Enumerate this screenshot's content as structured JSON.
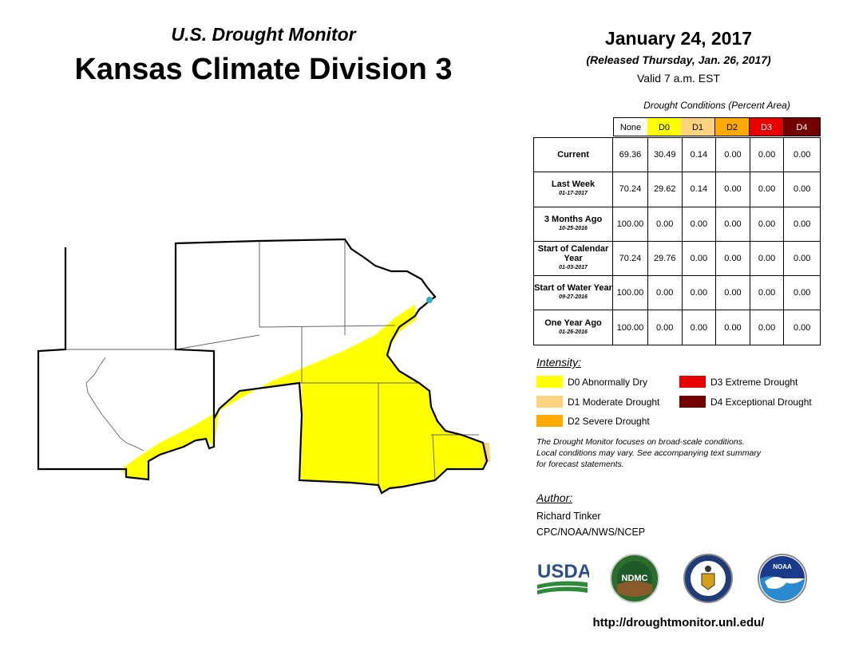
{
  "header": {
    "subtitle": "U.S. Drought Monitor",
    "title": "Kansas Climate Division 3",
    "date": "January 24, 2017",
    "released": "(Released Thursday, Jan. 26, 2017)",
    "valid": "Valid 7 a.m. EST"
  },
  "colors": {
    "none": "#ffffff",
    "d0": "#ffff00",
    "d1": "#fcd37f",
    "d2": "#ffaa00",
    "d3": "#e60000",
    "d4": "#730000"
  },
  "table": {
    "title": "Drought Conditions (Percent Area)",
    "columns": [
      "None",
      "D0",
      "D1",
      "D2",
      "D3",
      "D4"
    ],
    "rows": [
      {
        "label": "Current",
        "date": "",
        "values": [
          "69.36",
          "30.49",
          "0.14",
          "0.00",
          "0.00",
          "0.00"
        ]
      },
      {
        "label": "Last Week",
        "date": "01-17-2017",
        "values": [
          "70.24",
          "29.62",
          "0.14",
          "0.00",
          "0.00",
          "0.00"
        ]
      },
      {
        "label": "3 Months Ago",
        "date": "10-25-2016",
        "values": [
          "100.00",
          "0.00",
          "0.00",
          "0.00",
          "0.00",
          "0.00"
        ]
      },
      {
        "label": "Start of Calendar Year",
        "date": "01-03-2017",
        "values": [
          "70.24",
          "29.76",
          "0.00",
          "0.00",
          "0.00",
          "0.00"
        ]
      },
      {
        "label": "Start of Water Year",
        "date": "09-27-2016",
        "values": [
          "100.00",
          "0.00",
          "0.00",
          "0.00",
          "0.00",
          "0.00"
        ]
      },
      {
        "label": "One Year Ago",
        "date": "01-26-2016",
        "values": [
          "100.00",
          "0.00",
          "0.00",
          "0.00",
          "0.00",
          "0.00"
        ]
      }
    ]
  },
  "legend": {
    "title": "Intensity:",
    "items": [
      {
        "label": "D0 Abnormally Dry",
        "color": "#ffff00"
      },
      {
        "label": "D1 Moderate Drought",
        "color": "#fcd37f"
      },
      {
        "label": "D2 Severe Drought",
        "color": "#ffaa00"
      },
      {
        "label": "D3 Extreme Drought",
        "color": "#e60000"
      },
      {
        "label": "D4 Exceptional Drought",
        "color": "#730000"
      }
    ]
  },
  "note": {
    "line1": "The Drought Monitor focuses on broad-scale conditions.",
    "line2": "Local conditions may vary. See accompanying text summary",
    "line3": "for forecast statements."
  },
  "author": {
    "heading": "Author:",
    "name": "Richard Tinker",
    "org": "CPC/NOAA/NWS/NCEP"
  },
  "logos": {
    "usda": "USDA",
    "ndmc": "NDMC",
    "noaa": "NOAA"
  },
  "url": "http://droughtmonitor.unl.edu/"
}
